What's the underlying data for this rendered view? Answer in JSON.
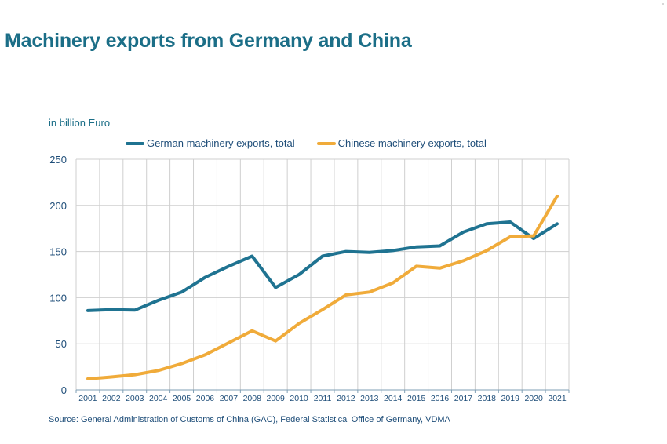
{
  "page": {
    "title": "Machinery exports from Germany and China",
    "unit_label": "in billion Euro",
    "source": "Source: General Administration of Customs of China (GAC), Federal Statistical Office of Germany, VDMA"
  },
  "chart_data": {
    "type": "line",
    "title": "Machinery exports from Germany and China",
    "ylabel": "in billion Euro",
    "xlabel": "",
    "ylim": [
      0,
      250
    ],
    "yticks": [
      0,
      50,
      100,
      150,
      200,
      250
    ],
    "grid": true,
    "legend_position": "top",
    "categories": [
      "2001",
      "2002",
      "2003",
      "2004",
      "2005",
      "2006",
      "2007",
      "2008",
      "2009",
      "2010",
      "2011",
      "2012",
      "2013",
      "2014",
      "2015",
      "2016",
      "2017",
      "2018",
      "2019",
      "2020",
      "2021"
    ],
    "series": [
      {
        "name": "German machinery exports, total",
        "color": "#1f7391",
        "values": [
          86,
          87,
          86.5,
          97,
          106,
          122,
          134,
          145,
          111,
          125,
          145,
          150,
          149,
          151,
          155,
          156,
          171,
          180,
          182,
          164,
          180
        ]
      },
      {
        "name": "Chinese machinery exports, total",
        "color": "#f0ab3a",
        "values": [
          12,
          14,
          16.5,
          21,
          28.5,
          38,
          51,
          64,
          53,
          72,
          87,
          103,
          106,
          116,
          134,
          132,
          140,
          151,
          166,
          167,
          210
        ]
      }
    ]
  }
}
